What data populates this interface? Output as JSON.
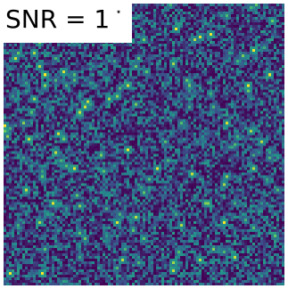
{
  "label": {
    "text": "SNR = 1",
    "marker": "⋆"
  },
  "image": {
    "description_type": "noise-heatmap",
    "colormap": [
      "#440154",
      "#3b528b",
      "#21918c",
      "#5ec962",
      "#fde725"
    ],
    "accent_background": "#2a2f7a"
  }
}
